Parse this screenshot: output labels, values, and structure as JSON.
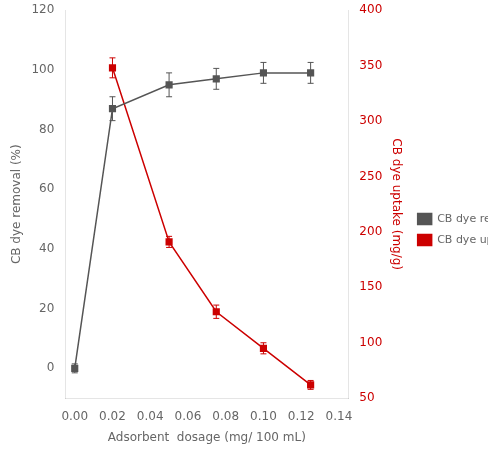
{
  "chart_data": {
    "type": "line",
    "xlabel": "Adsorbent  dosage (mg/ 100 mL)",
    "ylabel": "CB dye removal (%)",
    "y2label": "CB dye uptake (mg/g)",
    "xlim": [
      -0.005,
      0.145
    ],
    "xticks": [
      {
        "value": 0.0,
        "label": "0.00"
      },
      {
        "value": 0.02,
        "label": "0.02"
      },
      {
        "value": 0.04,
        "label": "0.04"
      },
      {
        "value": 0.06,
        "label": "0.06"
      },
      {
        "value": 0.08,
        "label": "0.08"
      },
      {
        "value": 0.1,
        "label": "0.10"
      },
      {
        "value": 0.12,
        "label": "0.12"
      },
      {
        "value": 0.14,
        "label": "0.14"
      }
    ],
    "ylim": [
      -10,
      120
    ],
    "yticks": [
      0,
      20,
      40,
      60,
      80,
      100,
      120
    ],
    "y2lim": [
      50,
      400
    ],
    "y2ticks": [
      50,
      100,
      150,
      200,
      250,
      300,
      350,
      400
    ],
    "grid": false,
    "legend": "right",
    "series": [
      {
        "name": "CB dye removal (%)",
        "color": "#555555",
        "marker": "square",
        "line_style": "solid",
        "x": [
          0.0,
          0.02,
          0.05,
          0.075,
          0.1,
          0.125
        ],
        "values": [
          0.0,
          87.0,
          95.0,
          97.0,
          99.0,
          99.0
        ],
        "errors": [
          1.5,
          4.0,
          4.0,
          3.5,
          3.5,
          3.5
        ]
      },
      {
        "name": "CB dye uptake (mg/g)",
        "color": "#cc0000",
        "marker": "square",
        "line_style": "solid",
        "axis": "y2",
        "x": [
          0.02,
          0.05,
          0.075,
          0.1,
          0.125
        ],
        "values": [
          348.0,
          191.0,
          128.0,
          95.0,
          62.0
        ],
        "errors": [
          9.0,
          5.0,
          6.0,
          5.0,
          4.0
        ]
      }
    ]
  }
}
